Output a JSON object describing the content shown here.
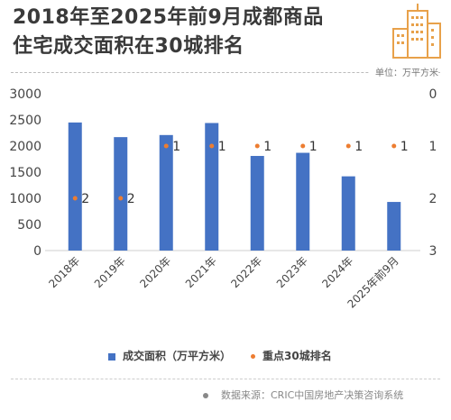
{
  "title_lines": [
    "2018年至2025年前9月成都商品",
    "住宅成交面积在30城排名"
  ],
  "unit_label": "单位：万平方米",
  "legend": {
    "bar_label": "成交面积（万平方米）",
    "rank_label": "重点30城排名"
  },
  "source": "数据来源：CRIC中国房地产决策咨询系统",
  "colors": {
    "bar": "#4472c4",
    "rank": "#ed7d31"
  },
  "chart_data": {
    "type": "bar",
    "categories": [
      "2018年",
      "2019年",
      "2020年",
      "2021年",
      "2022年",
      "2023年",
      "2024年",
      "2025年前9月"
    ],
    "series": [
      {
        "name": "成交面积（万平方米）",
        "axis": "left",
        "values": [
          2450,
          2170,
          2210,
          2440,
          1810,
          1870,
          1420,
          930
        ]
      },
      {
        "name": "重点30城排名",
        "axis": "right",
        "type": "scatter",
        "values": [
          2,
          2,
          1,
          1,
          1,
          1,
          1,
          1
        ]
      }
    ],
    "y_left": {
      "min": 0,
      "max": 3000,
      "ticks": [
        0,
        500,
        1000,
        1500,
        2000,
        2500,
        3000
      ]
    },
    "y_right": {
      "min": 0,
      "max": 3,
      "inverted": true,
      "ticks": [
        0,
        1,
        2,
        3
      ]
    },
    "title": "2018年至2025年前9月成都商品住宅成交面积在30城排名"
  }
}
